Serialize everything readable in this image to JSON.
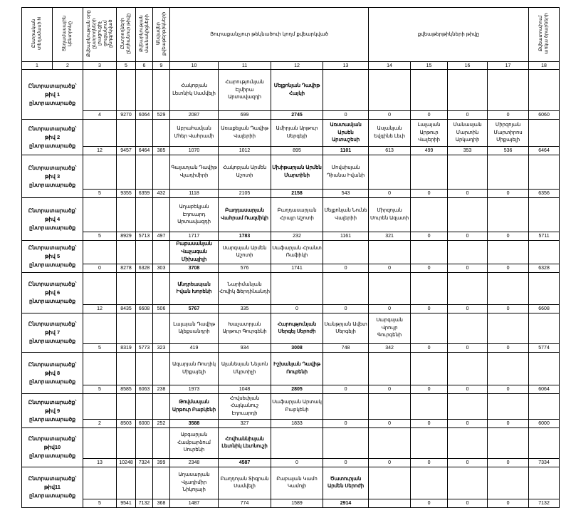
{
  "header": {
    "columns": {
      "c1": "Ընտրական տեղամասի N",
      "c2": "Տեղամասային կենտրոնը",
      "c3": "Քվեարկության օրը ընտրողների լրացուցիչ ցուցակում ընդգրկված",
      "c5": "Ընտրողների ընդհանուր թիվը",
      "c6": "Քվեարկության մասնակիցների",
      "c9": "Անվավեր քվեաթերթիկների",
      "main_left": "Յուրաքանչյուր թեկնածուի կողմ քվեարկված",
      "main_right": "քվեաթերթիկների թիվը",
      "c18": "Քվեատուփում առկա ծրարների"
    },
    "numbers": [
      "1",
      "2",
      "3",
      "5",
      "6",
      "9",
      "10",
      "11",
      "12",
      "13",
      "14",
      "15",
      "16",
      "17",
      "18"
    ]
  },
  "rows": [
    {
      "label": "Ընտրատարածք՝ թիվ 1 ընտրատարածք",
      "winner": 2,
      "names": [
        "Հակոբյան Լեւոնիկ Սամվելի",
        "Հարությունյան Էլմիրա Արտավազդի",
        "Մելքոնյան Դավիթ Հայկի",
        "",
        "",
        "",
        "",
        ""
      ],
      "values": [
        "4",
        "9270",
        "6064",
        "529",
        "2087",
        "699",
        "2745",
        "0",
        "0",
        "0",
        "0",
        "0",
        "6060"
      ]
    },
    {
      "label": "Ընտրատարածք՝ թիվ 2 ընտրատարածք",
      "winner": 3,
      "names": [
        "Աբրահամյան Մհեր Վահրամի",
        "Առաքելյան Դավիթ Վալերիի",
        "Ամիրյան Արթուր Սերգեյի",
        "Առստամյան Արսեն Արտաշեսի",
        "Ասլանյան Եվգինե Լեւի",
        "Լալայան Արթուր Վալերիի",
        "Մանասյան Մարտին Արկադիի",
        "Միրզոյան Մարտիրոս Միքայելի"
      ],
      "values": [
        "12",
        "9457",
        "6464",
        "385",
        "1070",
        "1012",
        "895",
        "1101",
        "613",
        "499",
        "353",
        "536",
        "6464"
      ]
    },
    {
      "label": "Ընտրատարածք՝ թիվ 3 ընտրատարածք",
      "winner": 2,
      "names": [
        "Գալստյան Դավիթ Վլադիմիրի",
        "Հակոբյան Արմեն Աշոտի",
        "Մխիթարյան Արմեն Մարտինի",
        "Մովսիսյան Դիանա Իվանի",
        "",
        "",
        "",
        ""
      ],
      "values": [
        "5",
        "9355",
        "6359",
        "432",
        "1118",
        "2105",
        "2158",
        "543",
        "0",
        "0",
        "0",
        "0",
        "6356"
      ]
    },
    {
      "label": "Ընտրատարածք՝ թիվ 4 ընտրատարածք",
      "winner": 1,
      "names": [
        "Աղաբեկյան Էդուարդ Արտավազդի",
        "Բաղդասարյան Վահրամ Ռազմիկի",
        "Բաղդասարյան Հրայր Աշոտի",
        "Մելքոնյան Նունե Վալերիի",
        "Միրզոյան Սուրեն Ազատի",
        "",
        "",
        ""
      ],
      "values": [
        "5",
        "8929",
        "5713",
        "497",
        "1717",
        "1783",
        "232",
        "1161",
        "321",
        "0",
        "0",
        "0",
        "5711"
      ]
    },
    {
      "label": "Ընտրատարածք՝ թիվ 5 ընտրատարածք",
      "winner": 0,
      "names": [
        "Բաբասանյան Վաչագան Միխայիլի",
        "Սարգսյան Արմեն Աշոտի",
        "Սաֆարյան Հրանտ Ռաֆիկի",
        "",
        "",
        "",
        "",
        ""
      ],
      "values": [
        "0",
        "8278",
        "6328",
        "303",
        "3708",
        "576",
        "1741",
        "0",
        "0",
        "0",
        "0",
        "0",
        "6328"
      ]
    },
    {
      "label": "Ընտրատարածք՝ թիվ 6 ընտրատարածք",
      "winner": 0,
      "names": [
        "Անդրեասյան Իվան Խորենի",
        "Նարիմանյան Հովիկ Ֆերդինանդի",
        "",
        "",
        "",
        "",
        "",
        ""
      ],
      "values": [
        "12",
        "8435",
        "6608",
        "506",
        "5767",
        "335",
        "0",
        "0",
        "0",
        "0",
        "0",
        "0",
        "6608"
      ]
    },
    {
      "label": "Ընտրատարածք՝ թիվ 7 ընտրատարածք",
      "winner": 2,
      "names": [
        "Լալայան Դավիթ Ալեքսանդրի",
        "Խաչատրյան Արթուր Գուրգենի",
        "Հարությունյան Սերգեյ Սերոժի",
        "Սանթրյան Ավետ Սերգեյի",
        "Սարգսյան Վրույր Գուրգենի",
        "",
        "",
        ""
      ],
      "values": [
        "5",
        "8319",
        "5773",
        "323",
        "419",
        "934",
        "3008",
        "748",
        "342",
        "0",
        "0",
        "0",
        "5774"
      ]
    },
    {
      "label": "Ընտրատարածք՝ թիվ 8 ընտրատարածք",
      "winner": 2,
      "names": [
        "Ազարյան Ռուդիկ Միքայելի",
        "Ալանեսյան Նելսոն Մկրտիչի",
        "Իշխանյան Դավիթ Ռուբենի",
        "",
        "",
        "",
        "",
        ""
      ],
      "values": [
        "5",
        "8585",
        "6063",
        "238",
        "1973",
        "1048",
        "2805",
        "0",
        "0",
        "0",
        "0",
        "0",
        "6064"
      ]
    },
    {
      "label": "Ընտրատարածք՝ թիվ 9 ընտրատարածք",
      "winner": 0,
      "names": [
        "Թովմասյան Արթուր Բաբկենի",
        "Հովսեփյան Հայկանուշ Էդուարդի",
        "Սաֆարյան Արտակ Բաբկենի",
        "",
        "",
        "",
        "",
        ""
      ],
      "values": [
        "2",
        "8503",
        "6000",
        "252",
        "3588",
        "327",
        "1833",
        "0",
        "0",
        "0",
        "0",
        "0",
        "6000"
      ]
    },
    {
      "label": "Ընտրատարածք՝ թիվ10 ընտրատարածք",
      "winner": 1,
      "names": [
        "Աբգարյան Համբարձում Սուրենի",
        "Հովհաննիսյան Լեւոնիկ Լեւոնուշի",
        "",
        "",
        "",
        "",
        "",
        ""
      ],
      "values": [
        "13",
        "10248",
        "7324",
        "399",
        "2348",
        "4587",
        "0",
        "0",
        "0",
        "0",
        "0",
        "0",
        "7334"
      ]
    },
    {
      "label": "Ընտրատարածք՝ թիվ11 ընտրատարածք",
      "winner": 3,
      "names": [
        "Աղասարյան Վլադիմիր Նիկոլայի",
        "Բաղդոյան Տիգրան Սամվելի",
        "Բաբայան Կամո Կամոյի",
        "Ծատուրյան Արմեն Սերոժի",
        "",
        "",
        "",
        ""
      ],
      "values": [
        "5",
        "9541",
        "7132",
        "368",
        "1487",
        "774",
        "1589",
        "2914",
        "",
        "0",
        "0",
        "0",
        "7132"
      ]
    }
  ]
}
